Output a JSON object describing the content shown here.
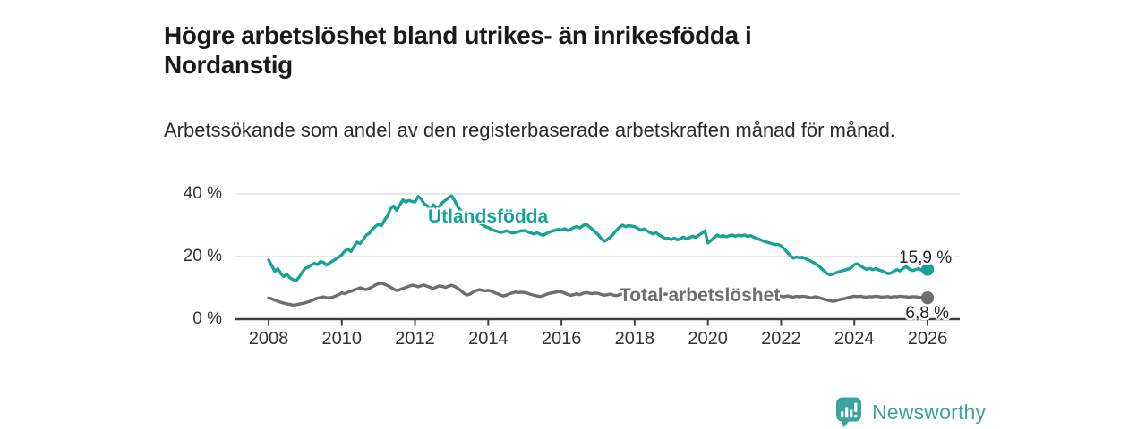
{
  "header": {
    "title": "Högre arbetslöshet bland utrikes- än inrikesfödda i Nordanstig",
    "subtitle": "Arbetssökande som andel av den registerbaserade arbetskraften månad för månad."
  },
  "branding": {
    "wordmark": "Newsworthy",
    "icon": "speech-bubble-bar-chart-exclamation",
    "brand_color": "#3ba49e"
  },
  "chart_data": {
    "type": "line",
    "title": "Högre arbetslöshet bland utrikes- än inrikesfödda i Nordanstig",
    "subtitle": "Arbetssökande som andel av den registerbaserade arbetskraften månad för månad.",
    "x_unit": "month",
    "x_range": [
      "2008-01",
      "2026-01"
    ],
    "x_ticks": [
      "2008",
      "2010",
      "2012",
      "2014",
      "2016",
      "2018",
      "2020",
      "2022",
      "2024",
      "2026"
    ],
    "y_ticks": [
      {
        "value": 0,
        "label": "0 %"
      },
      {
        "value": 20,
        "label": "20 %"
      },
      {
        "value": 40,
        "label": "40 %"
      }
    ],
    "ylim": [
      0,
      42
    ],
    "grid": "horizontal",
    "legend_position": "inline-labels",
    "axis_color": "#3f3f3f",
    "grid_color": "#d9d9d9",
    "series": [
      {
        "name": "Utlandsfödda",
        "color": "#16a294",
        "end_label": "15,9 %",
        "end_value": 15.9,
        "values": [
          18.9,
          17.2,
          15.2,
          16.1,
          14.6,
          13.6,
          14.3,
          13.2,
          12.6,
          12.2,
          13.4,
          14.9,
          16.2,
          16.6,
          17.3,
          17.8,
          17.4,
          18.4,
          18.1,
          17.3,
          17.9,
          18.6,
          19.2,
          19.8,
          20.6,
          21.8,
          22.3,
          21.6,
          23.2,
          24.6,
          24.1,
          25.3,
          26.8,
          27.4,
          28.6,
          29.6,
          30.3,
          29.8,
          31.6,
          33.0,
          35.3,
          36.1,
          34.7,
          36.4,
          38.1,
          37.4,
          37.9,
          37.6,
          37.4,
          39.2,
          38.4,
          36.8,
          36.2,
          34.8,
          36.5,
          35.6,
          36.0,
          37.2,
          38.0,
          38.8,
          39.4,
          37.8,
          35.9,
          34.6,
          33.4,
          33.8,
          32.9,
          32.2,
          31.6,
          30.8,
          30.2,
          29.6,
          29.2,
          28.7,
          28.3,
          28.0,
          27.7,
          27.9,
          28.2,
          27.8,
          27.5,
          27.7,
          28.0,
          28.2,
          28.3,
          27.9,
          27.5,
          27.2,
          27.6,
          27.1,
          26.8,
          27.3,
          27.8,
          28.1,
          28.4,
          28.7,
          28.4,
          28.9,
          28.3,
          28.7,
          29.2,
          29.6,
          29.1,
          29.8,
          30.4,
          29.6,
          28.8,
          27.9,
          27.0,
          25.8,
          24.9,
          25.4,
          26.2,
          27.1,
          28.3,
          29.3,
          30.0,
          29.5,
          29.9,
          29.7,
          29.5,
          29.0,
          28.4,
          28.8,
          28.2,
          27.7,
          27.2,
          27.6,
          26.9,
          26.3,
          25.7,
          25.8,
          25.4,
          25.9,
          25.3,
          25.7,
          26.2,
          25.6,
          26.0,
          26.5,
          26.1,
          26.8,
          27.4,
          28.2,
          24.3,
          25.1,
          26.0,
          26.8,
          26.4,
          26.7,
          26.3,
          26.6,
          26.9,
          26.5,
          26.8,
          26.6,
          26.9,
          26.4,
          26.7,
          26.2,
          25.8,
          25.4,
          25.0,
          24.7,
          24.4,
          24.1,
          23.8,
          23.9,
          23.4,
          22.4,
          21.4,
          20.3,
          19.5,
          19.9,
          19.6,
          19.8,
          19.3,
          18.9,
          18.4,
          17.9,
          17.2,
          16.4,
          15.5,
          14.6,
          14.1,
          14.4,
          14.8,
          15.1,
          15.4,
          15.7,
          16.0,
          16.4,
          17.4,
          17.7,
          17.1,
          16.4,
          15.9,
          16.2,
          15.8,
          16.1,
          15.7,
          15.4,
          15.0,
          14.5,
          14.7,
          15.3,
          15.8,
          15.4,
          16.2,
          16.8,
          16.0,
          15.5,
          15.8,
          16.1,
          15.7,
          15.6,
          15.9
        ]
      },
      {
        "name": "Total arbetslöshet",
        "color": "#6e6e6e",
        "end_label": "6,8 %",
        "end_value": 6.8,
        "values": [
          6.8,
          6.5,
          6.1,
          5.7,
          5.4,
          5.1,
          4.9,
          4.7,
          4.5,
          4.6,
          4.8,
          5.0,
          5.2,
          5.5,
          5.9,
          6.3,
          6.7,
          6.9,
          7.1,
          6.9,
          6.8,
          7.0,
          7.4,
          7.8,
          8.4,
          8.1,
          8.6,
          8.9,
          9.3,
          9.6,
          10.0,
          9.7,
          9.4,
          9.8,
          10.3,
          10.9,
          11.3,
          11.5,
          11.1,
          10.7,
          10.2,
          9.6,
          9.1,
          9.4,
          9.8,
          10.1,
          10.5,
          10.8,
          10.7,
          10.3,
          10.6,
          10.9,
          10.5,
          10.1,
          9.8,
          10.2,
          10.6,
          10.4,
          10.1,
          10.5,
          10.8,
          10.4,
          9.8,
          9.1,
          8.3,
          7.7,
          8.0,
          8.6,
          9.1,
          9.4,
          9.2,
          9.0,
          9.2,
          8.9,
          8.5,
          8.1,
          7.7,
          7.4,
          7.7,
          8.1,
          8.4,
          8.7,
          8.5,
          8.6,
          8.5,
          8.2,
          7.9,
          7.6,
          7.4,
          7.2,
          7.5,
          7.9,
          8.2,
          8.4,
          8.6,
          8.8,
          8.7,
          8.3,
          7.9,
          7.6,
          7.8,
          8.1,
          7.8,
          8.2,
          8.5,
          8.3,
          8.1,
          8.3,
          8.2,
          7.9,
          7.6,
          7.8,
          8.0,
          7.7,
          7.5,
          7.8,
          8.1,
          8.3,
          8.1,
          8.4,
          8.3,
          8.0,
          7.8,
          7.6,
          7.4,
          7.7,
          7.9,
          7.7,
          7.5,
          7.8,
          8.0,
          7.8,
          7.7,
          7.5,
          7.3,
          7.6,
          7.8,
          7.6,
          7.4,
          7.7,
          7.9,
          8.1,
          8.3,
          8.6,
          8.9,
          8.6,
          8.8,
          9.0,
          8.7,
          8.5,
          8.3,
          8.5,
          8.2,
          8.0,
          8.3,
          8.1,
          8.0,
          8.2,
          7.9,
          7.7,
          7.5,
          7.3,
          7.5,
          7.2,
          7.0,
          7.3,
          7.1,
          7.4,
          7.3,
          7.1,
          7.4,
          7.2,
          7.0,
          7.3,
          7.1,
          7.3,
          7.2,
          7.0,
          6.8,
          7.1,
          7.0,
          6.7,
          6.4,
          6.1,
          5.9,
          5.7,
          5.9,
          6.2,
          6.4,
          6.6,
          6.9,
          7.1,
          7.3,
          7.2,
          7.3,
          7.1,
          7.0,
          7.2,
          7.1,
          7.3,
          7.2,
          7.0,
          7.1,
          7.2,
          7.0,
          7.2,
          7.1,
          7.3,
          7.2,
          7.1,
          7.0,
          7.2,
          7.1,
          7.0,
          6.9,
          6.9,
          6.8
        ]
      }
    ]
  }
}
